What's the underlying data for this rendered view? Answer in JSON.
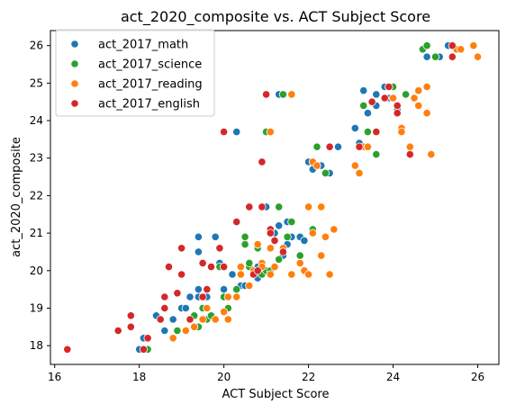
{
  "chart_data": {
    "type": "scatter",
    "title": "act_2020_composite vs. ACT Subject Score",
    "xlabel": "ACT Subject Score",
    "ylabel": "act_2020_composite",
    "xlim": [
      15.9,
      26.5
    ],
    "ylim": [
      17.5,
      26.4
    ],
    "x_ticks": [
      16,
      18,
      20,
      22,
      24,
      26
    ],
    "y_ticks": [
      18,
      19,
      20,
      21,
      22,
      23,
      24,
      25,
      26
    ],
    "grid": false,
    "legend_position": "upper-left",
    "series": [
      {
        "name": "act_2017_math",
        "color": "#1f77b4",
        "points": [
          [
            18.0,
            17.9
          ],
          [
            18.1,
            18.2
          ],
          [
            18.4,
            18.8
          ],
          [
            18.6,
            18.4
          ],
          [
            18.8,
            18.7
          ],
          [
            19.0,
            19.0
          ],
          [
            19.1,
            19.0
          ],
          [
            19.2,
            19.3
          ],
          [
            19.4,
            19.5
          ],
          [
            19.4,
            19.3
          ],
          [
            19.4,
            20.5
          ],
          [
            19.4,
            20.9
          ],
          [
            19.6,
            19.3
          ],
          [
            19.8,
            20.9
          ],
          [
            19.9,
            20.2
          ],
          [
            20.0,
            19.5
          ],
          [
            20.2,
            19.9
          ],
          [
            20.4,
            19.6
          ],
          [
            20.5,
            19.6
          ],
          [
            20.6,
            20.1
          ],
          [
            20.7,
            20.0
          ],
          [
            20.8,
            20.1
          ],
          [
            20.8,
            19.8
          ],
          [
            21.0,
            21.7
          ],
          [
            21.2,
            21.0
          ],
          [
            21.2,
            20.1
          ],
          [
            21.3,
            21.2
          ],
          [
            21.4,
            20.4
          ],
          [
            21.5,
            21.3
          ],
          [
            21.6,
            20.9
          ],
          [
            21.6,
            19.9
          ],
          [
            21.8,
            20.9
          ],
          [
            21.5,
            20.7
          ],
          [
            21.9,
            20.8
          ],
          [
            22.0,
            22.9
          ],
          [
            22.1,
            22.7
          ],
          [
            22.3,
            22.8
          ],
          [
            22.5,
            22.6
          ],
          [
            22.7,
            23.3
          ],
          [
            23.1,
            23.8
          ],
          [
            23.2,
            23.4
          ],
          [
            23.3,
            24.8
          ],
          [
            23.4,
            24.2
          ],
          [
            23.6,
            24.7
          ],
          [
            23.6,
            24.4
          ],
          [
            23.8,
            24.9
          ],
          [
            23.9,
            24.6
          ],
          [
            24.0,
            24.9
          ],
          [
            24.3,
            24.7
          ],
          [
            24.1,
            24.3
          ],
          [
            24.8,
            25.7
          ],
          [
            25.1,
            25.7
          ],
          [
            25.3,
            26.0
          ],
          [
            25.4,
            25.7
          ],
          [
            20.3,
            23.7
          ],
          [
            21.3,
            24.7
          ]
        ]
      },
      {
        "name": "act_2017_science",
        "color": "#2ca02c",
        "points": [
          [
            18.2,
            17.9
          ],
          [
            18.9,
            18.4
          ],
          [
            19.3,
            18.8
          ],
          [
            19.4,
            18.5
          ],
          [
            19.5,
            19.0
          ],
          [
            19.6,
            18.7
          ],
          [
            19.7,
            18.8
          ],
          [
            19.9,
            20.1
          ],
          [
            20.0,
            20.1
          ],
          [
            20.0,
            19.3
          ],
          [
            20.1,
            19.0
          ],
          [
            20.3,
            19.5
          ],
          [
            20.4,
            19.9
          ],
          [
            20.5,
            20.9
          ],
          [
            20.6,
            20.1
          ],
          [
            20.6,
            20.2
          ],
          [
            20.5,
            20.7
          ],
          [
            20.8,
            20.6
          ],
          [
            20.9,
            19.9
          ],
          [
            21.0,
            20.0
          ],
          [
            21.1,
            20.0
          ],
          [
            21.3,
            21.7
          ],
          [
            21.3,
            20.3
          ],
          [
            21.5,
            20.9
          ],
          [
            21.6,
            21.3
          ],
          [
            21.8,
            20.4
          ],
          [
            22.0,
            19.9
          ],
          [
            22.1,
            21.1
          ],
          [
            22.2,
            23.3
          ],
          [
            22.4,
            22.6
          ],
          [
            23.3,
            24.4
          ],
          [
            23.4,
            23.7
          ],
          [
            23.6,
            23.1
          ],
          [
            23.8,
            24.6
          ],
          [
            24.0,
            24.9
          ],
          [
            24.3,
            24.7
          ],
          [
            24.7,
            25.9
          ],
          [
            24.8,
            26.0
          ],
          [
            25.0,
            25.7
          ],
          [
            21.0,
            23.7
          ],
          [
            21.4,
            24.7
          ]
        ]
      },
      {
        "name": "act_2017_reading",
        "color": "#ff7f0e",
        "points": [
          [
            18.8,
            18.2
          ],
          [
            19.1,
            18.4
          ],
          [
            19.3,
            18.5
          ],
          [
            19.5,
            18.7
          ],
          [
            19.6,
            19.0
          ],
          [
            19.8,
            18.7
          ],
          [
            20.0,
            18.9
          ],
          [
            20.1,
            19.3
          ],
          [
            20.1,
            18.7
          ],
          [
            20.3,
            19.3
          ],
          [
            20.4,
            19.9
          ],
          [
            20.4,
            20.1
          ],
          [
            20.6,
            19.6
          ],
          [
            20.7,
            20.0
          ],
          [
            20.8,
            20.7
          ],
          [
            20.9,
            20.2
          ],
          [
            20.9,
            20.1
          ],
          [
            21.1,
            20.6
          ],
          [
            21.1,
            19.9
          ],
          [
            21.2,
            20.1
          ],
          [
            21.4,
            20.6
          ],
          [
            21.6,
            19.9
          ],
          [
            21.8,
            20.2
          ],
          [
            21.9,
            20.0
          ],
          [
            22.0,
            19.9
          ],
          [
            22.0,
            21.7
          ],
          [
            22.1,
            21.0
          ],
          [
            22.3,
            21.7
          ],
          [
            22.3,
            20.4
          ],
          [
            22.4,
            20.9
          ],
          [
            22.5,
            19.9
          ],
          [
            22.6,
            21.1
          ],
          [
            22.1,
            22.9
          ],
          [
            22.2,
            22.8
          ],
          [
            23.1,
            22.8
          ],
          [
            23.2,
            22.6
          ],
          [
            23.3,
            23.3
          ],
          [
            23.4,
            23.3
          ],
          [
            23.9,
            24.9
          ],
          [
            24.0,
            24.6
          ],
          [
            24.2,
            23.8
          ],
          [
            24.2,
            23.7
          ],
          [
            24.4,
            23.3
          ],
          [
            24.5,
            24.6
          ],
          [
            24.6,
            24.8
          ],
          [
            24.6,
            24.4
          ],
          [
            24.8,
            24.9
          ],
          [
            24.8,
            24.2
          ],
          [
            24.9,
            23.1
          ],
          [
            25.5,
            25.9
          ],
          [
            25.6,
            25.9
          ],
          [
            25.9,
            26.0
          ],
          [
            26.0,
            25.7
          ],
          [
            21.1,
            23.7
          ],
          [
            21.6,
            24.7
          ]
        ]
      },
      {
        "name": "act_2017_english",
        "color": "#d62728",
        "points": [
          [
            16.3,
            17.9
          ],
          [
            17.5,
            18.4
          ],
          [
            17.8,
            18.8
          ],
          [
            17.8,
            18.5
          ],
          [
            18.1,
            17.9
          ],
          [
            18.2,
            18.2
          ],
          [
            18.5,
            18.7
          ],
          [
            18.6,
            19.3
          ],
          [
            18.6,
            19.0
          ],
          [
            18.7,
            20.1
          ],
          [
            18.9,
            19.4
          ],
          [
            19.0,
            19.9
          ],
          [
            19.0,
            20.6
          ],
          [
            19.2,
            18.7
          ],
          [
            19.5,
            19.3
          ],
          [
            19.5,
            20.2
          ],
          [
            19.6,
            19.5
          ],
          [
            19.7,
            20.1
          ],
          [
            19.9,
            20.6
          ],
          [
            20.0,
            20.1
          ],
          [
            20.3,
            21.3
          ],
          [
            20.6,
            21.7
          ],
          [
            20.7,
            19.9
          ],
          [
            20.8,
            20.0
          ],
          [
            20.9,
            21.7
          ],
          [
            21.1,
            21.1
          ],
          [
            21.1,
            21.0
          ],
          [
            21.2,
            20.8
          ],
          [
            21.4,
            20.5
          ],
          [
            22.5,
            23.3
          ],
          [
            23.2,
            23.3
          ],
          [
            23.5,
            24.5
          ],
          [
            23.6,
            23.7
          ],
          [
            23.8,
            24.6
          ],
          [
            23.9,
            24.9
          ],
          [
            24.1,
            24.4
          ],
          [
            24.1,
            24.2
          ],
          [
            24.4,
            23.1
          ],
          [
            25.4,
            26.0
          ],
          [
            25.4,
            25.7
          ],
          [
            20.0,
            23.7
          ],
          [
            21.0,
            24.7
          ],
          [
            20.9,
            22.9
          ]
        ]
      }
    ]
  }
}
